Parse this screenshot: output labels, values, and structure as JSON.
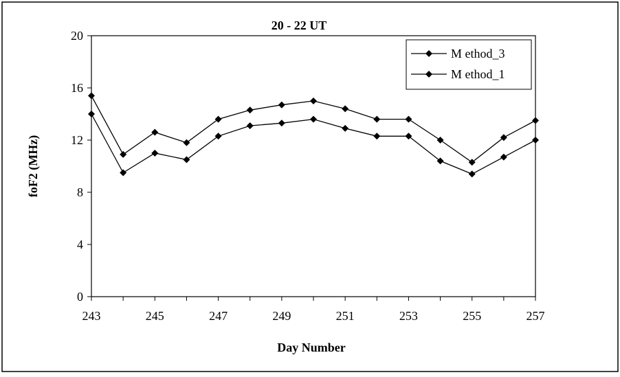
{
  "chart_data": {
    "type": "line",
    "title": "20 - 22 UT",
    "xlabel": "Day Number",
    "ylabel": "foF2 (MHz)",
    "x": [
      243,
      244,
      245,
      246,
      247,
      248,
      249,
      250,
      251,
      252,
      253,
      254,
      255,
      256,
      257
    ],
    "xlim": [
      243,
      257
    ],
    "xticks": [
      243,
      245,
      247,
      249,
      251,
      253,
      255,
      257
    ],
    "ylim": [
      0,
      20
    ],
    "yticks": [
      0,
      4,
      8,
      12,
      16,
      20
    ],
    "grid": false,
    "legend_position": "top-right",
    "series": [
      {
        "name": "M ethod_3",
        "values": [
          15.4,
          10.9,
          12.6,
          11.8,
          13.6,
          14.3,
          14.7,
          15.0,
          14.4,
          13.6,
          13.6,
          12.0,
          10.3,
          12.2,
          13.5
        ]
      },
      {
        "name": "M ethod_1",
        "values": [
          14.0,
          9.5,
          11.0,
          10.5,
          12.3,
          13.1,
          13.3,
          13.6,
          12.9,
          12.3,
          12.3,
          10.4,
          9.4,
          10.7,
          12.0
        ]
      }
    ]
  }
}
